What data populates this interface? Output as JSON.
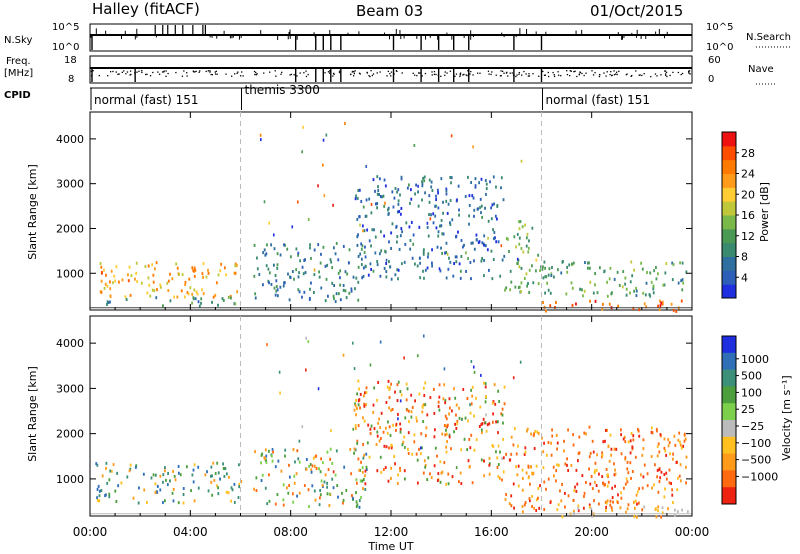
{
  "header": {
    "station": "Halley (fitACF)",
    "beam": "Beam 03",
    "date": "01/Oct/2015"
  },
  "top_panels": {
    "nsky_label": "N.Sky",
    "nsky_ticks": [
      "10^5",
      "10^0"
    ],
    "nsearch_label": "N.Search",
    "nsearch_ticks": [
      "10^5",
      "10^0"
    ],
    "freq_label": "Freq.",
    "freq_unit": "[MHz]",
    "freq_ticks": [
      "18",
      "8"
    ],
    "nave_label": "Nave",
    "nave_ticks": [
      "60",
      "0"
    ],
    "cpid_label": "CPID",
    "cpid_segments": [
      {
        "name": "normal (fast) 151",
        "start_h": 0,
        "end_h": 6
      },
      {
        "name": "themis 3300",
        "start_h": 6,
        "end_h": 18
      },
      {
        "name": "normal (fast) 151",
        "start_h": 18,
        "end_h": 24
      }
    ]
  },
  "chart_data": [
    {
      "type": "heatmap",
      "title": "",
      "xlabel": "Time UT",
      "ylabel": "Slant Range [km]",
      "xlim": [
        0,
        24
      ],
      "ylim": [
        180,
        4600
      ],
      "x_ticks": [
        "00:00",
        "04:00",
        "08:00",
        "12:00",
        "16:00",
        "20:00",
        "00:00"
      ],
      "x_tick_hours": [
        0,
        4,
        8,
        12,
        16,
        20,
        24
      ],
      "y_ticks": [
        1000,
        2000,
        3000,
        4000
      ],
      "colorbar": {
        "label": "Power [dB]",
        "ticks": [
          "4",
          "8",
          "12",
          "16",
          "20",
          "24",
          "28"
        ],
        "tick_values": [
          4,
          8,
          12,
          16,
          20,
          24,
          28
        ],
        "range": [
          0,
          32
        ],
        "colors": [
          "#1f2fe0",
          "#2e5fb8",
          "#2f6fa0",
          "#3a8a70",
          "#4a9a55",
          "#7ab84a",
          "#c0c83a",
          "#ffcc33",
          "#ff9a1a",
          "#ff7a00",
          "#ff4d00",
          "#ee1111"
        ]
      },
      "echo_regions": [
        {
          "t0": 0.2,
          "t1": 6.0,
          "r0": 500,
          "r1": 1300,
          "value": 22
        },
        {
          "t0": 0.4,
          "t1": 5.8,
          "r0": 300,
          "r1": 500,
          "value": 10
        },
        {
          "t0": 6.5,
          "t1": 11.0,
          "r0": 400,
          "r1": 1700,
          "value": 8
        },
        {
          "t0": 10.5,
          "t1": 16.5,
          "r0": 900,
          "r1": 3200,
          "value": 6
        },
        {
          "t0": 16.5,
          "t1": 18.0,
          "r0": 600,
          "r1": 2200,
          "value": 14
        },
        {
          "t0": 18.0,
          "t1": 23.8,
          "r0": 180,
          "r1": 420,
          "value": 26
        },
        {
          "t0": 18.0,
          "t1": 23.8,
          "r0": 500,
          "r1": 1300,
          "value": 12
        }
      ]
    },
    {
      "type": "heatmap",
      "title": "",
      "xlabel": "Time UT",
      "ylabel": "Slant Range [km]",
      "xlim": [
        0,
        24
      ],
      "ylim": [
        180,
        4600
      ],
      "x_ticks": [
        "00:00",
        "04:00",
        "08:00",
        "12:00",
        "16:00",
        "20:00",
        "00:00"
      ],
      "x_tick_hours": [
        0,
        4,
        8,
        12,
        16,
        20,
        24
      ],
      "y_ticks": [
        1000,
        2000,
        3000,
        4000
      ],
      "colorbar": {
        "label": "Velocity [m s⁻¹]",
        "ticks": [
          "1000",
          "500",
          "100",
          "25",
          "−25",
          "−100",
          "−500",
          "−1000"
        ],
        "colors": [
          "#1f2fe0",
          "#2e6fb8",
          "#3c8f78",
          "#4c9f3c",
          "#7cd04c",
          "#bbbbbb",
          "#ffc020",
          "#ff9a1a",
          "#ff6a10",
          "#ee2211"
        ]
      },
      "echo_regions": [
        {
          "t0": 0.2,
          "t1": 6.0,
          "r0": 500,
          "r1": 1400,
          "value_class": "positive-mid"
        },
        {
          "t0": 6.5,
          "t1": 11.0,
          "r0": 400,
          "r1": 1700,
          "value_class": "mixed"
        },
        {
          "t0": 10.5,
          "t1": 16.5,
          "r0": 900,
          "r1": 3200,
          "value_class": "negative-low"
        },
        {
          "t0": 16.5,
          "t1": 23.8,
          "r0": 300,
          "r1": 2200,
          "value_class": "negative-mid"
        },
        {
          "t0": 18.0,
          "t1": 23.8,
          "r0": 180,
          "r1": 420,
          "value_class": "near-zero"
        }
      ]
    }
  ],
  "colors": {
    "axis": "#000000",
    "dashed_marker": "#bbbbbb"
  }
}
